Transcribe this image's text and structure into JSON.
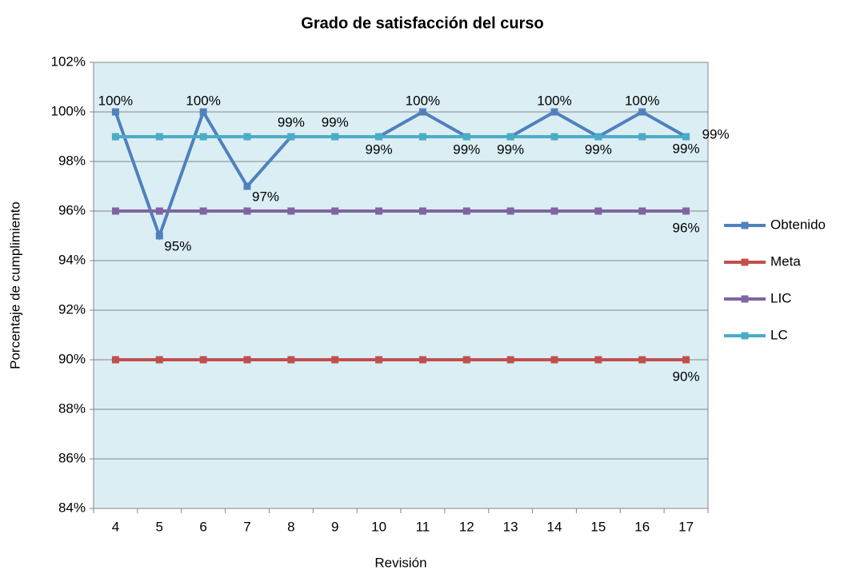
{
  "chart_data": {
    "type": "line",
    "title": "Grado de satisfacción del curso",
    "x_label": "Revisión",
    "y_label": "Porcentaje de cumplimiento",
    "categories": [
      4,
      5,
      6,
      7,
      8,
      9,
      10,
      11,
      12,
      13,
      14,
      15,
      16,
      17
    ],
    "series": [
      {
        "name": "Obtenido",
        "color": "#4f81bd",
        "values": [
          100,
          95,
          100,
          97,
          99,
          99,
          99,
          100,
          99,
          99,
          100,
          99,
          100,
          99
        ],
        "value_labels": [
          "100%",
          "95%",
          "100%",
          "97%",
          "99%",
          "99%",
          "99%",
          "100%",
          "99%",
          "99%",
          "100%",
          "99%",
          "100%",
          "99%"
        ]
      },
      {
        "name": "Meta",
        "color": "#c0504d",
        "values": [
          90,
          90,
          90,
          90,
          90,
          90,
          90,
          90,
          90,
          90,
          90,
          90,
          90,
          90
        ],
        "value_labels": [
          null,
          null,
          null,
          null,
          null,
          null,
          null,
          null,
          null,
          null,
          null,
          null,
          null,
          "90%"
        ]
      },
      {
        "name": "LIC",
        "color": "#8064a2",
        "values": [
          96,
          96,
          96,
          96,
          96,
          96,
          96,
          96,
          96,
          96,
          96,
          96,
          96,
          96
        ],
        "value_labels": [
          null,
          null,
          null,
          null,
          null,
          null,
          null,
          null,
          null,
          null,
          null,
          null,
          null,
          "96%"
        ]
      },
      {
        "name": "LC",
        "color": "#4bacc6",
        "values": [
          99,
          99,
          99,
          99,
          99,
          99,
          99,
          99,
          99,
          99,
          99,
          99,
          99,
          99
        ],
        "value_labels": [
          null,
          null,
          null,
          null,
          null,
          null,
          null,
          null,
          null,
          null,
          null,
          null,
          null,
          "99%"
        ]
      }
    ],
    "ylim": [
      84,
      102
    ],
    "yticks": [
      {
        "value": 84,
        "label": "84%"
      },
      {
        "value": 86,
        "label": "86%"
      },
      {
        "value": 88,
        "label": "88%"
      },
      {
        "value": 90,
        "label": "90%"
      },
      {
        "value": 92,
        "label": "92%"
      },
      {
        "value": 94,
        "label": "94%"
      },
      {
        "value": 96,
        "label": "96%"
      },
      {
        "value": 98,
        "label": "98%"
      },
      {
        "value": 100,
        "label": "100%"
      },
      {
        "value": 102,
        "label": "102%"
      }
    ],
    "grid": true,
    "legend": "right",
    "plot_background": "#dbeef4"
  }
}
